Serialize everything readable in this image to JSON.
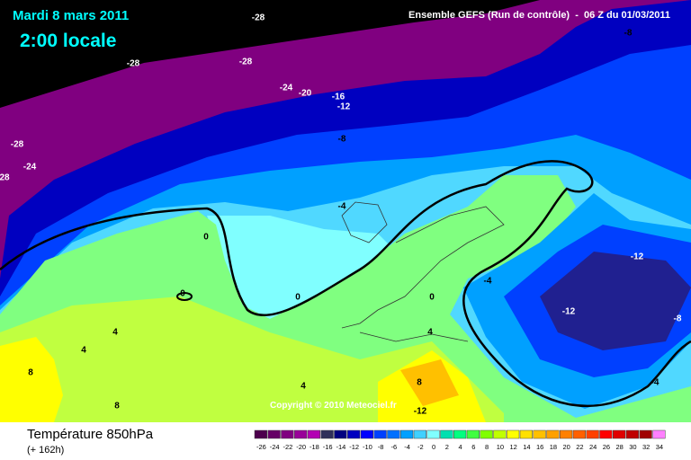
{
  "header": {
    "date": "Mardi 8 mars 2011",
    "local_time": "2:00 locale",
    "model": "Ensemble GEFS (Run de contrôle)  -  06 Z du 01/03/2011",
    "copyright": "Copyright © 2010 Meteociel.fr"
  },
  "contour_labels": [
    "-28",
    "-28",
    "-28",
    "-24",
    "-20",
    "-16",
    "-12",
    "-8",
    "-8",
    "-28",
    "-24",
    "28",
    "-4",
    "0",
    "0",
    "0",
    "0",
    "-4",
    "-12",
    "-12",
    "-8",
    "4",
    "4",
    "4",
    "8",
    "8",
    "4",
    "8",
    "-12",
    "-4"
  ],
  "legend": {
    "title": "Température 850hPa",
    "lead_time": "(+ 162h)",
    "values": [
      -26,
      -24,
      -22,
      -20,
      -18,
      -16,
      -14,
      -12,
      -10,
      -8,
      -6,
      -4,
      -2,
      0,
      2,
      4,
      6,
      8,
      10,
      12,
      14,
      16,
      18,
      20,
      22,
      24,
      26,
      28,
      30,
      32,
      34
    ],
    "colors": [
      "#4d004d",
      "#660066",
      "#800080",
      "#990099",
      "#b300b3",
      "#30305a",
      "#000080",
      "#0000c0",
      "#0000ff",
      "#0040ff",
      "#0070ff",
      "#00a0ff",
      "#40d0ff",
      "#80ffff",
      "#00e0b0",
      "#00ff80",
      "#40ff40",
      "#80ff00",
      "#c0ff00",
      "#ffff00",
      "#ffe000",
      "#ffc000",
      "#ffa000",
      "#ff8000",
      "#ff6000",
      "#ff4000",
      "#ff0000",
      "#e00000",
      "#c00000",
      "#a00000",
      "#ff80ff"
    ]
  }
}
